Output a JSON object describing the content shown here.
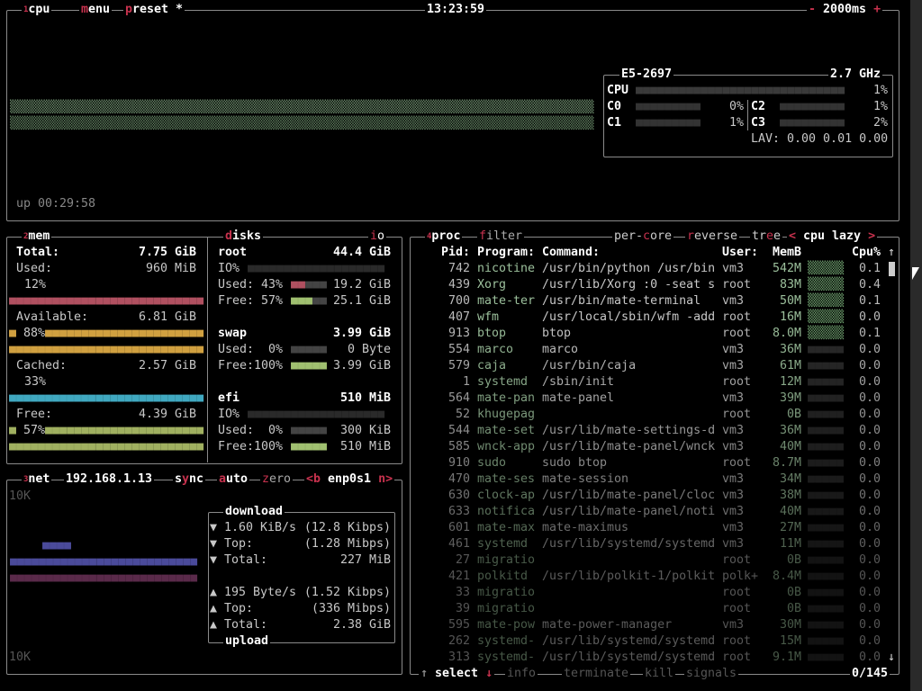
{
  "colors": {
    "accent": "#c8324e",
    "border": "#8a8a8a",
    "cpu_graph": "#5f7f5f",
    "used": "#b05060",
    "available": "#d0a040",
    "cached": "#40a8c0",
    "free": "#a0b060",
    "net_down": "#4a4a9a",
    "net_up": "#5a2a4a"
  },
  "cpu": {
    "panel_num": "1",
    "title": "cpu",
    "menu": "menu",
    "preset": "preset *",
    "clock": "13:23:59",
    "interval": "- 2000ms +",
    "uptime": "up 00:29:58",
    "model": "E5-2697",
    "freq": "2.7 GHz",
    "total": {
      "label": "CPU",
      "value": "1%",
      "percent": 1
    },
    "cores": [
      {
        "label": "C0",
        "value": "0%",
        "percent": 0
      },
      {
        "label": "C1",
        "value": "1%",
        "percent": 1
      },
      {
        "label": "C2",
        "value": "1%",
        "percent": 1
      },
      {
        "label": "C3",
        "value": "2%",
        "percent": 2
      }
    ],
    "lav": "LAV: 0.00 0.01 0.00"
  },
  "mem": {
    "panel_num": "2",
    "title": "mem",
    "total_label": "Total:",
    "total": "7.75 GiB",
    "used_label": "Used:",
    "used": "960 MiB",
    "used_pct": "12%",
    "available_label": "Available:",
    "available": "6.81 GiB",
    "available_pct": "88%",
    "cached_label": "Cached:",
    "cached": "2.57 GiB",
    "cached_pct": "33%",
    "free_label": "Free:",
    "free": "4.39 GiB",
    "free_pct": "57%"
  },
  "disks": {
    "title": "disks",
    "io": "io",
    "items": [
      {
        "name": "root",
        "size": "44.4 GiB",
        "io": "IO%",
        "used": "Used: 43%",
        "used_val": "19.2 GiB",
        "free": "Free: 57%",
        "free_val": "25.1 GiB",
        "used_pct": 43,
        "free_pct": 57
      },
      {
        "name": "swap",
        "size": "3.99 GiB",
        "used": "Used:  0%",
        "used_val": "0 Byte",
        "free": "Free:100%",
        "free_val": "3.99 GiB",
        "used_pct": 0,
        "free_pct": 100
      },
      {
        "name": "efi",
        "size": "510 MiB",
        "io": "IO%",
        "used": "Used:  0%",
        "used_val": "300 KiB",
        "free": "Free:100%",
        "free_val": "510 MiB",
        "used_pct": 0,
        "free_pct": 100
      }
    ]
  },
  "net": {
    "panel_num": "3",
    "title": "net",
    "ip": "192.168.1.13",
    "sync": "sync",
    "auto": "auto",
    "zero": "zero",
    "iface": "<b enp0s1 n>",
    "scale_top": "10K",
    "scale_bottom": "10K",
    "download_title": "download",
    "upload_title": "upload",
    "download": [
      {
        "label": "▼ 1.60 KiB/s",
        "value": "(12.8 Kibps)"
      },
      {
        "label": "▼ Top:",
        "value": "(1.28 Mibps)"
      },
      {
        "label": "▼ Total:",
        "value": "227 MiB"
      }
    ],
    "upload": [
      {
        "label": "▲ 195 Byte/s",
        "value": "(1.52 Kibps)"
      },
      {
        "label": "▲ Top:",
        "value": "(336 Mibps)"
      },
      {
        "label": "▲ Total:",
        "value": "2.38 GiB"
      }
    ]
  },
  "proc": {
    "panel_num": "4",
    "title": "proc",
    "filter": "filter",
    "per_core": "per-core",
    "reverse": "reverse",
    "tree": "tree",
    "sort": "< cpu lazy >",
    "headers": {
      "pid": "Pid:",
      "program": "Program:",
      "command": "Command:",
      "user": "User:",
      "mem": "MemB",
      "cpu": "Cpu%"
    },
    "rows": [
      {
        "pid": "742",
        "program": "nicotine",
        "command": "/usr/bin/python /usr/bin",
        "user": "vm3",
        "mem": "542M",
        "cpu": "0.1"
      },
      {
        "pid": "439",
        "program": "Xorg",
        "command": "/usr/lib/Xorg :0 -seat s",
        "user": "root",
        "mem": "83M",
        "cpu": "0.4"
      },
      {
        "pid": "700",
        "program": "mate-ter",
        "command": "/usr/bin/mate-terminal",
        "user": "vm3",
        "mem": "50M",
        "cpu": "0.1"
      },
      {
        "pid": "407",
        "program": "wfm",
        "command": "/usr/local/sbin/wfm -add",
        "user": "root",
        "mem": "16M",
        "cpu": "0.0"
      },
      {
        "pid": "913",
        "program": "btop",
        "command": "btop",
        "user": "root",
        "mem": "8.0M",
        "cpu": "0.1"
      },
      {
        "pid": "554",
        "program": "marco",
        "command": "marco",
        "user": "vm3",
        "mem": "36M",
        "cpu": "0.0"
      },
      {
        "pid": "579",
        "program": "caja",
        "command": "/usr/bin/caja",
        "user": "vm3",
        "mem": "61M",
        "cpu": "0.0"
      },
      {
        "pid": "1",
        "program": "systemd",
        "command": "/sbin/init",
        "user": "root",
        "mem": "12M",
        "cpu": "0.0"
      },
      {
        "pid": "564",
        "program": "mate-pan",
        "command": "mate-panel",
        "user": "vm3",
        "mem": "39M",
        "cpu": "0.0"
      },
      {
        "pid": "52",
        "program": "khugepag",
        "command": "",
        "user": "root",
        "mem": "0B",
        "cpu": "0.0"
      },
      {
        "pid": "544",
        "program": "mate-set",
        "command": "/usr/lib/mate-settings-d",
        "user": "vm3",
        "mem": "36M",
        "cpu": "0.0"
      },
      {
        "pid": "585",
        "program": "wnck-app",
        "command": "/usr/lib/mate-panel/wnck",
        "user": "vm3",
        "mem": "40M",
        "cpu": "0.0"
      },
      {
        "pid": "910",
        "program": "sudo",
        "command": "sudo btop",
        "user": "root",
        "mem": "8.7M",
        "cpu": "0.0"
      },
      {
        "pid": "470",
        "program": "mate-ses",
        "command": "mate-session",
        "user": "vm3",
        "mem": "34M",
        "cpu": "0.0"
      },
      {
        "pid": "630",
        "program": "clock-ap",
        "command": "/usr/lib/mate-panel/cloc",
        "user": "vm3",
        "mem": "38M",
        "cpu": "0.0"
      },
      {
        "pid": "633",
        "program": "notifica",
        "command": "/usr/lib/mate-panel/noti",
        "user": "vm3",
        "mem": "40M",
        "cpu": "0.0"
      },
      {
        "pid": "601",
        "program": "mate-max",
        "command": "mate-maximus",
        "user": "vm3",
        "mem": "27M",
        "cpu": "0.0"
      },
      {
        "pid": "461",
        "program": "systemd",
        "command": "/usr/lib/systemd/systemd",
        "user": "vm3",
        "mem": "11M",
        "cpu": "0.0"
      },
      {
        "pid": "27",
        "program": "migratio",
        "command": "",
        "user": "root",
        "mem": "0B",
        "cpu": "0.0"
      },
      {
        "pid": "421",
        "program": "polkitd",
        "command": "/usr/lib/polkit-1/polkit",
        "user": "polk+",
        "mem": "8.4M",
        "cpu": "0.0"
      },
      {
        "pid": "33",
        "program": "migratio",
        "command": "",
        "user": "root",
        "mem": "0B",
        "cpu": "0.0"
      },
      {
        "pid": "39",
        "program": "migratio",
        "command": "",
        "user": "root",
        "mem": "0B",
        "cpu": "0.0"
      },
      {
        "pid": "595",
        "program": "mate-pow",
        "command": "mate-power-manager",
        "user": "vm3",
        "mem": "30M",
        "cpu": "0.0"
      },
      {
        "pid": "262",
        "program": "systemd-",
        "command": "/usr/lib/systemd/systemd",
        "user": "root",
        "mem": "15M",
        "cpu": "0.0"
      },
      {
        "pid": "313",
        "program": "systemd-",
        "command": "/usr/lib/systemd/systemd",
        "user": "root",
        "mem": "9.1M",
        "cpu": "0.0"
      }
    ],
    "footer": {
      "select": "select",
      "info": "info",
      "terminate": "terminate",
      "kill": "kill",
      "signals": "signals",
      "count": "0/145",
      "up_arrow": "↑",
      "down_arrow": "↓"
    }
  }
}
